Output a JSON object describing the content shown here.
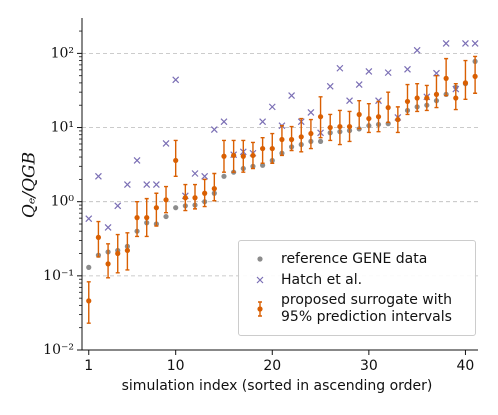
{
  "chart_data": {
    "type": "scatter",
    "x_label": "simulation index (sorted in ascending order)",
    "y_label": "Qₑ/QGB",
    "x": [
      1,
      2,
      3,
      4,
      5,
      6,
      7,
      8,
      9,
      10,
      11,
      12,
      13,
      14,
      15,
      16,
      17,
      18,
      19,
      20,
      21,
      22,
      23,
      24,
      25,
      26,
      27,
      28,
      29,
      30,
      31,
      32,
      33,
      34,
      35,
      36,
      37,
      38,
      39,
      40,
      41
    ],
    "xlim": [
      0.3,
      41.3
    ],
    "xticks": [
      1,
      10,
      20,
      30,
      40
    ],
    "ylim": [
      0.01,
      300
    ],
    "log_y": true,
    "yticks": [
      {
        "value": 0.01,
        "label": "10⁻²"
      },
      {
        "value": 0.1,
        "label": "10⁻¹"
      },
      {
        "value": 1,
        "label": "10⁰"
      },
      {
        "value": 10,
        "label": "10¹"
      },
      {
        "value": 100,
        "label": "10²"
      }
    ],
    "grid": true,
    "legend": "lower right",
    "series": [
      {
        "name": "reference GENE data",
        "color": "#8c8c8c",
        "marker": "dot",
        "values": [
          0.13,
          0.19,
          0.21,
          0.22,
          0.25,
          0.4,
          0.52,
          0.5,
          0.63,
          0.83,
          0.88,
          0.9,
          1.0,
          1.3,
          2.2,
          2.5,
          2.8,
          3.0,
          3.1,
          3.6,
          4.5,
          5.5,
          5.9,
          6.5,
          6.5,
          8.5,
          8.8,
          9.1,
          9.6,
          10.6,
          11,
          11.3,
          12.8,
          17,
          19,
          20,
          23,
          28,
          35,
          39,
          78
        ]
      },
      {
        "name": "Hatch et al.",
        "color": "#7b6fb5",
        "marker": "x",
        "values": [
          0.59,
          2.2,
          0.45,
          0.88,
          1.7,
          3.6,
          1.7,
          1.7,
          6.1,
          44,
          1.2,
          2.4,
          2.2,
          9.4,
          12,
          4.3,
          4.7,
          4.5,
          12,
          19,
          10.6,
          27,
          12,
          16,
          8.5,
          36,
          63,
          23,
          38,
          57,
          23,
          55,
          13.7,
          61,
          110,
          26,
          54,
          136,
          33,
          136,
          136
        ]
      },
      {
        "name": "proposed surrogate with 95% prediction intervals",
        "color": "#d95f02",
        "marker": "errorbar",
        "values": [
          0.046,
          0.33,
          0.145,
          0.2,
          0.22,
          0.61,
          0.61,
          0.83,
          1.06,
          3.6,
          1.13,
          1.13,
          1.3,
          1.5,
          4.1,
          4.2,
          4.1,
          4.2,
          5.2,
          5.2,
          6.9,
          6.9,
          7.5,
          8.3,
          14,
          10,
          10.3,
          10.3,
          15,
          13.2,
          14,
          18.6,
          12.8,
          22.5,
          25,
          25,
          28,
          46,
          25,
          40,
          49
        ],
        "lower": [
          0.023,
          0.18,
          0.094,
          0.11,
          0.12,
          0.34,
          0.34,
          0.47,
          0.71,
          2.2,
          0.76,
          0.8,
          0.86,
          1.03,
          2.5,
          2.5,
          2.5,
          2.8,
          3.3,
          3.3,
          4.2,
          4.9,
          4.7,
          5.2,
          7.3,
          6.7,
          5.9,
          6.5,
          9.7,
          8.6,
          8.8,
          11.7,
          8.6,
          15,
          16.5,
          17,
          18.6,
          27,
          17.5,
          24,
          29
        ],
        "upper": [
          0.083,
          0.54,
          0.27,
          0.36,
          0.38,
          1.0,
          1.1,
          1.3,
          1.6,
          6.7,
          1.7,
          1.7,
          2.0,
          2.4,
          6.7,
          6.7,
          6.7,
          6.3,
          7.3,
          8.3,
          10.6,
          10.3,
          13.2,
          12.8,
          26,
          15,
          17,
          16.5,
          23,
          21,
          22.5,
          30,
          19,
          38,
          39,
          37,
          50,
          85,
          39,
          80,
          91
        ]
      }
    ]
  }
}
